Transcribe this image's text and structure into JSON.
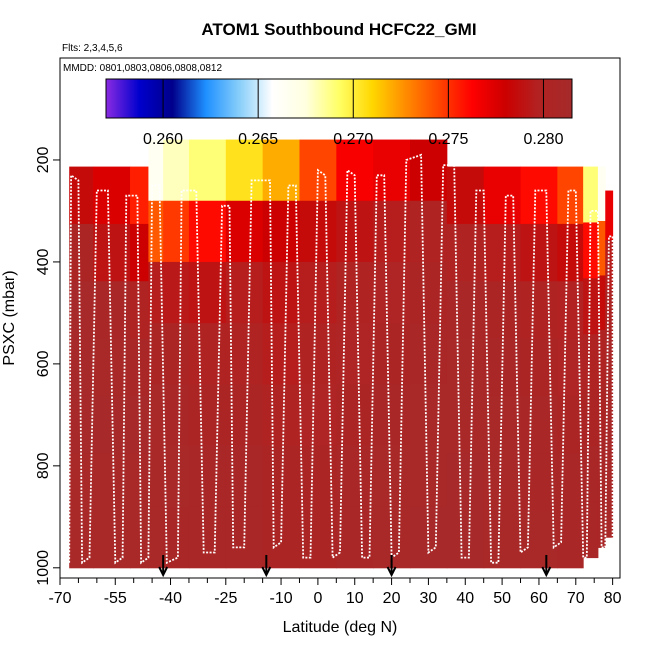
{
  "chart_data": {
    "type": "heatmap",
    "title": "ATOM1 Southbound HCFC22_GMI",
    "flights_note": "Flts: 2,3,4,5,6",
    "dates_note": "MMDD: 0801,0803,0806,0808,0812",
    "xlabel": "Latitude (deg N)",
    "ylabel": "PSXC (mbar)",
    "xlim": [
      -70,
      82
    ],
    "ylim": [
      1020,
      0
    ],
    "x_ticks": [
      -70,
      -55,
      -40,
      -25,
      -10,
      0,
      10,
      20,
      30,
      40,
      50,
      60,
      70,
      80
    ],
    "x_tick_labels": [
      "-70",
      "-55",
      "-40",
      "-25",
      "-10",
      "0",
      "10",
      "20",
      "30",
      "40",
      "50",
      "60",
      "70",
      "80"
    ],
    "x_minor_ticks": [
      -65,
      -60,
      -50,
      -45,
      -35,
      -30,
      -20,
      -15,
      -5,
      5,
      15,
      25,
      35,
      45,
      55,
      65,
      75
    ],
    "y_ticks": [
      200,
      400,
      600,
      800,
      1000
    ],
    "y_tick_labels": [
      "200",
      "400",
      "600",
      "800",
      "1000"
    ],
    "colorbar": {
      "min": 0.257,
      "max": 0.2815,
      "ticks": [
        0.26,
        0.265,
        0.27,
        0.275,
        0.28
      ],
      "tick_labels": [
        "0.260",
        "0.265",
        "0.270",
        "0.275",
        "0.280"
      ],
      "colors": [
        "#8a2be2",
        "#0000cd",
        "#00008b",
        "#1e90ff",
        "#87cefa",
        "#ffffff",
        "#ffffe0",
        "#ffff66",
        "#ffd700",
        "#ff8c00",
        "#ff4500",
        "#ff0000",
        "#cc0000",
        "#b22222",
        "#a52a2a"
      ]
    },
    "arrows_lat": [
      -42,
      -14,
      20,
      62
    ],
    "columns": [
      {
        "lat0": -67.5,
        "lat1": -61,
        "top": 213,
        "bottom": 1000,
        "values": [
          0.2785,
          0.2805,
          0.2812,
          0.2812,
          0.2812,
          0.281,
          0.281
        ]
      },
      {
        "lat0": -61,
        "lat1": -51,
        "top": 213,
        "bottom": 1000,
        "values": [
          0.2775,
          0.279,
          0.2808,
          0.281,
          0.2812,
          0.281,
          0.281
        ]
      },
      {
        "lat0": -51,
        "lat1": -46,
        "top": 213,
        "bottom": 1000,
        "values": [
          0.2755,
          0.278,
          0.28,
          0.2808,
          0.2812,
          0.281,
          0.281
        ]
      },
      {
        "lat0": -46,
        "lat1": -42,
        "top": 160,
        "bottom": 1000,
        "values": [
          0.2665,
          0.274,
          0.2795,
          0.2805,
          0.281,
          0.281,
          0.281
        ]
      },
      {
        "lat0": -42,
        "lat1": -35,
        "top": 160,
        "bottom": 1000,
        "values": [
          0.268,
          0.2748,
          0.2793,
          0.2805,
          0.2808,
          0.281,
          0.2808
        ]
      },
      {
        "lat0": -35,
        "lat1": -25,
        "top": 160,
        "bottom": 1000,
        "values": [
          0.269,
          0.276,
          0.279,
          0.28,
          0.2805,
          0.2808,
          0.2808
        ]
      },
      {
        "lat0": -25,
        "lat1": -15,
        "top": 160,
        "bottom": 1000,
        "values": [
          0.2705,
          0.2775,
          0.2795,
          0.28,
          0.2805,
          0.2808,
          0.2808
        ]
      },
      {
        "lat0": -15,
        "lat1": -5,
        "top": 160,
        "bottom": 1000,
        "values": [
          0.272,
          0.278,
          0.279,
          0.2795,
          0.28,
          0.2805,
          0.2805
        ]
      },
      {
        "lat0": -5,
        "lat1": 5,
        "top": 160,
        "bottom": 1000,
        "values": [
          0.2745,
          0.2785,
          0.2795,
          0.28,
          0.2802,
          0.2805,
          0.2805
        ]
      },
      {
        "lat0": 5,
        "lat1": 15,
        "top": 160,
        "bottom": 1000,
        "values": [
          0.2765,
          0.279,
          0.28,
          0.2802,
          0.2805,
          0.2808,
          0.2808
        ]
      },
      {
        "lat0": 15,
        "lat1": 25,
        "top": 160,
        "bottom": 1000,
        "values": [
          0.277,
          0.2795,
          0.2802,
          0.2805,
          0.2808,
          0.281,
          0.281
        ]
      },
      {
        "lat0": 25,
        "lat1": 35,
        "top": 160,
        "bottom": 1000,
        "values": [
          0.278,
          0.28,
          0.2805,
          0.2808,
          0.281,
          0.281,
          0.2812
        ]
      },
      {
        "lat0": 35,
        "lat1": 45,
        "top": 213,
        "bottom": 1000,
        "values": [
          0.2785,
          0.28,
          0.2808,
          0.281,
          0.281,
          0.2812,
          0.2812
        ]
      },
      {
        "lat0": 45,
        "lat1": 55,
        "top": 213,
        "bottom": 1000,
        "values": [
          0.277,
          0.2795,
          0.2805,
          0.2808,
          0.281,
          0.281,
          0.281
        ]
      },
      {
        "lat0": 55,
        "lat1": 65,
        "top": 213,
        "bottom": 1000,
        "values": [
          0.276,
          0.279,
          0.28,
          0.2805,
          0.2808,
          0.2808,
          0.281
        ]
      },
      {
        "lat0": 65,
        "lat1": 72,
        "top": 213,
        "bottom": 1000,
        "values": [
          0.2745,
          0.2785,
          0.2798,
          0.2802,
          0.2805,
          0.2808,
          0.2808
        ]
      },
      {
        "lat0": 72,
        "lat1": 76,
        "top": 213,
        "bottom": 980,
        "values": [
          0.269,
          0.276,
          0.279,
          0.28,
          0.2805,
          0.2808,
          0.2808
        ]
      },
      {
        "lat0": 76,
        "lat1": 78,
        "top": 213,
        "bottom": 960,
        "values": [
          0.2665,
          0.274,
          0.2785,
          0.28,
          0.2805,
          0.2808,
          0.2808
        ]
      },
      {
        "lat0": 78,
        "lat1": 80,
        "top": 260,
        "bottom": 940,
        "values": [
          0.277,
          0.2795,
          0.2805,
          0.2808,
          0.281,
          0.281,
          0.281
        ]
      }
    ],
    "flight_track": [
      [
        -67.5,
        990
      ],
      [
        -67,
        230
      ],
      [
        -65,
        240
      ],
      [
        -64,
        990
      ],
      [
        -62,
        980
      ],
      [
        -60,
        260
      ],
      [
        -57,
        260
      ],
      [
        -55,
        990
      ],
      [
        -53,
        980
      ],
      [
        -52,
        270
      ],
      [
        -49,
        270
      ],
      [
        -48,
        990
      ],
      [
        -46,
        980
      ],
      [
        -45,
        250
      ],
      [
        -43,
        250
      ],
      [
        -41,
        990
      ],
      [
        -38,
        980
      ],
      [
        -37,
        260
      ],
      [
        -33,
        260
      ],
      [
        -31,
        970
      ],
      [
        -28,
        970
      ],
      [
        -26,
        290
      ],
      [
        -24,
        290
      ],
      [
        -23,
        960
      ],
      [
        -20,
        960
      ],
      [
        -18,
        240
      ],
      [
        -13,
        240
      ],
      [
        -12,
        960
      ],
      [
        -10,
        950
      ],
      [
        -8,
        250
      ],
      [
        -6,
        250
      ],
      [
        -4,
        980
      ],
      [
        -2,
        980
      ],
      [
        0,
        220
      ],
      [
        2,
        230
      ],
      [
        4,
        980
      ],
      [
        6,
        970
      ],
      [
        8,
        220
      ],
      [
        10,
        230
      ],
      [
        12,
        980
      ],
      [
        14,
        980
      ],
      [
        16,
        230
      ],
      [
        18,
        230
      ],
      [
        20,
        980
      ],
      [
        22,
        970
      ],
      [
        24,
        200
      ],
      [
        28,
        190
      ],
      [
        30,
        970
      ],
      [
        32,
        960
      ],
      [
        34,
        210
      ],
      [
        37,
        210
      ],
      [
        39,
        980
      ],
      [
        41,
        980
      ],
      [
        43,
        260
      ],
      [
        45,
        260
      ],
      [
        47,
        990
      ],
      [
        49,
        990
      ],
      [
        51,
        270
      ],
      [
        53,
        270
      ],
      [
        55,
        970
      ],
      [
        57,
        960
      ],
      [
        59,
        260
      ],
      [
        62,
        260
      ],
      [
        64,
        960
      ],
      [
        66,
        950
      ],
      [
        68,
        260
      ],
      [
        70,
        260
      ],
      [
        72,
        980
      ],
      [
        73,
        980
      ],
      [
        74,
        300
      ],
      [
        76,
        300
      ],
      [
        77,
        960
      ],
      [
        78,
        960
      ],
      [
        79,
        350
      ],
      [
        80,
        350
      ],
      [
        80,
        960
      ]
    ]
  }
}
